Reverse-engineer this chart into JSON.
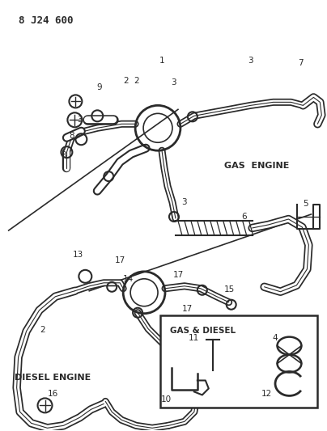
{
  "title": "8 J24 600",
  "bg_color": "#ffffff",
  "line_color": "#2a2a2a",
  "fig_width": 4.04,
  "fig_height": 5.33,
  "dpi": 100,
  "labels": {
    "gas_engine": "GAS  ENGINE",
    "diesel_engine": "DIESEL ENGINE",
    "gas_diesel": "GAS & DIESEL"
  }
}
